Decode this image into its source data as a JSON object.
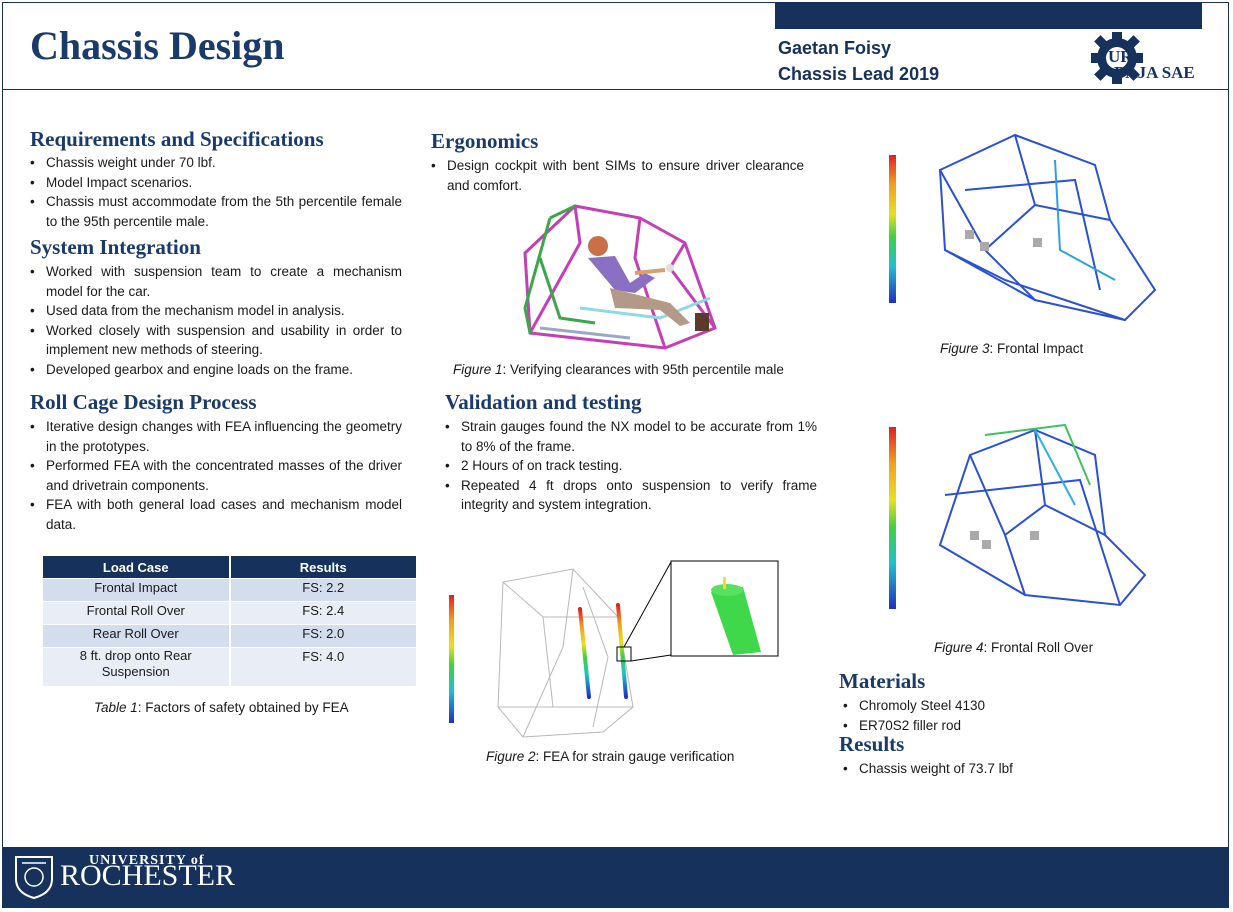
{
  "header": {
    "title": "Chassis Design",
    "author_name": "Gaetan Foisy",
    "author_role": "Chassis Lead 2019",
    "logo_ur": "UR",
    "logo_baja": "BAJA SAE"
  },
  "requirements": {
    "heading": "Requirements and Specifications",
    "items": [
      "Chassis weight under 70 lbf.",
      "Model Impact scenarios.",
      "Chassis must accommodate from the 5th percentile female to the 95th percentile male."
    ]
  },
  "integration": {
    "heading": "System Integration",
    "items": [
      "Worked with suspension team to create a mechanism model for the car.",
      "Used data from the mechanism model in analysis.",
      "Worked closely with suspension and usability in order to implement new methods of steering.",
      "Developed gearbox and engine loads on the frame."
    ]
  },
  "rollcage": {
    "heading": "Roll Cage Design Process",
    "items": [
      "Iterative design changes with FEA influencing the geometry in the prototypes.",
      "Performed FEA with the concentrated masses of the driver and drivetrain components.",
      "FEA with both general load cases and mechanism model data."
    ]
  },
  "table": {
    "headers": [
      "Load Case",
      "Results"
    ],
    "rows": [
      [
        "Frontal Impact",
        "FS: 2.2"
      ],
      [
        "Frontal Roll Over",
        "FS: 2.4"
      ],
      [
        "Rear Roll Over",
        "FS: 2.0"
      ],
      [
        "8 ft. drop onto Rear Suspension",
        "FS: 4.0"
      ]
    ],
    "caption_label": "Table 1",
    "caption_text": ": Factors of safety obtained by FEA"
  },
  "ergonomics": {
    "heading": "Ergonomics",
    "items": [
      "Design cockpit with bent SIMs to ensure driver clearance and comfort."
    ]
  },
  "figure1": {
    "label": "Figure 1",
    "text": ": Verifying clearances with 95th percentile male"
  },
  "validation": {
    "heading": "Validation and testing",
    "items": [
      "Strain gauges found the NX model to be accurate from 1% to 8% of the frame.",
      "2 Hours of on track testing.",
      "Repeated 4 ft drops onto suspension to verify frame integrity and system integration."
    ]
  },
  "figure2": {
    "label": "Figure 2",
    "text": ": FEA for strain gauge verification"
  },
  "figure3": {
    "label": "Figure 3",
    "text": ": Frontal Impact"
  },
  "figure4": {
    "label": "Figure 4",
    "text": ": Frontal Roll Over"
  },
  "materials": {
    "heading": "Materials",
    "items": [
      "Chromoly Steel 4130",
      "ER70S2 filler rod"
    ]
  },
  "results": {
    "heading": "Results",
    "items": [
      "Chassis weight of 73.7 lbf"
    ]
  },
  "footer": {
    "university_top": "UNIVERSITY of",
    "university_name": "ROCHESTER"
  },
  "colors": {
    "navy": "#16325c",
    "heading": "#1a3a6b",
    "table_odd": "#d3ddee",
    "table_even": "#e8edf6"
  }
}
